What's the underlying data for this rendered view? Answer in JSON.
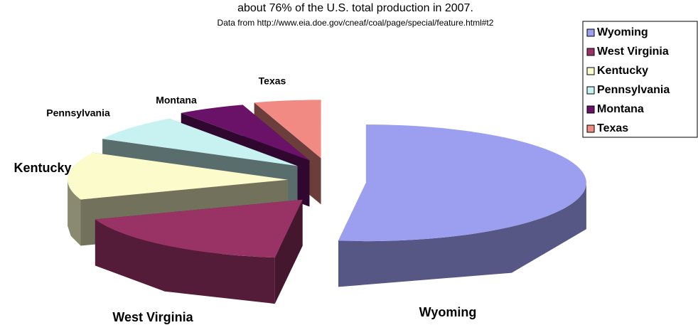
{
  "chart_data": {
    "type": "pie3d",
    "title": "about 76% of the U.S. total production in 2007.",
    "subtitle": "Data from http://www.eia.doe.gov/cneaf/coal/page/special/feature.html#t2",
    "categories": [
      "Wyoming",
      "West Virginia",
      "Kentucky",
      "Pennsylvania",
      "Montana",
      "Texas"
    ],
    "values": [
      52,
      17.5,
      13.2,
      7.4,
      5,
      4.9
    ],
    "colors": [
      "#9c9ff0",
      "#993366",
      "#fbfbcc",
      "#c8f2f2",
      "#6a1268",
      "#f08a82"
    ],
    "legend": "right"
  }
}
